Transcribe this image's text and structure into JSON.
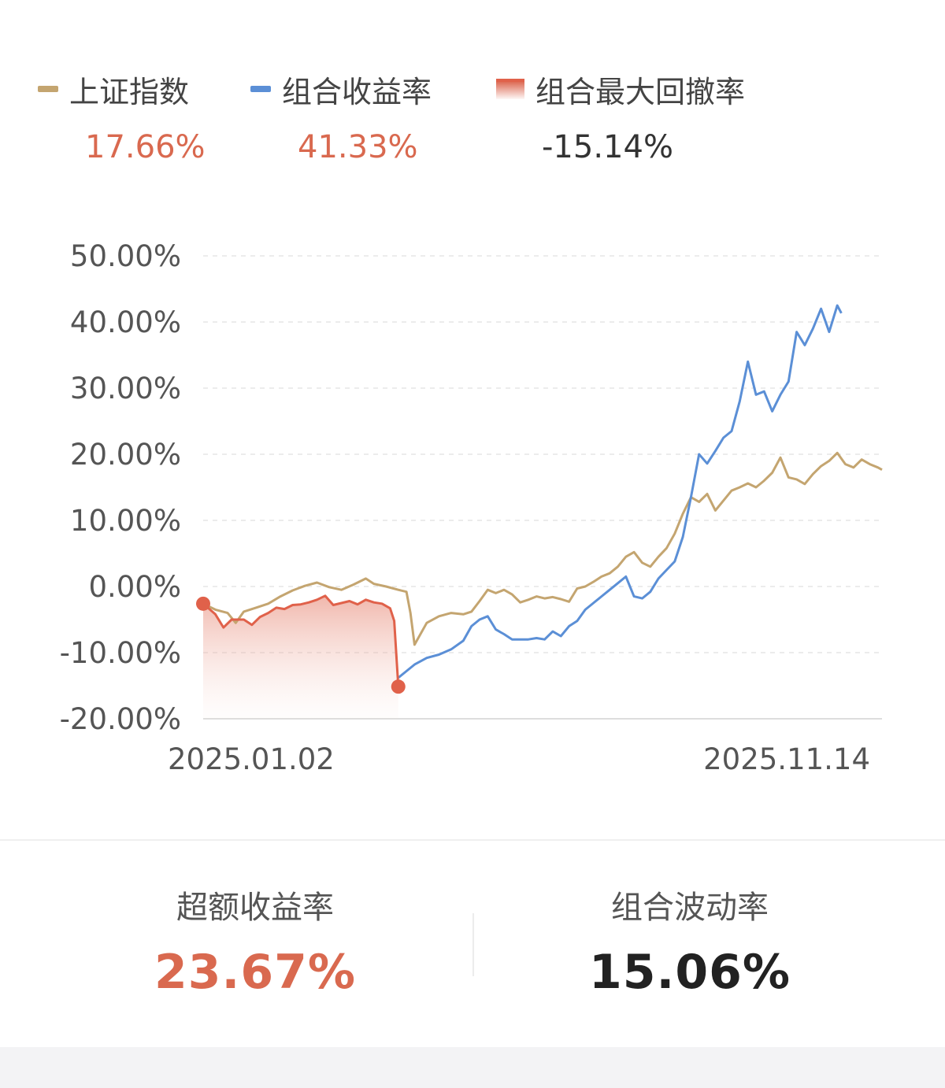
{
  "legend": [
    {
      "label": "上证指数",
      "value": "17.66%",
      "color": "#c4a570",
      "value_color": "#d9694f"
    },
    {
      "label": "组合收益率",
      "value": "41.33%",
      "color": "#5b8fd6",
      "value_color": "#d9694f"
    },
    {
      "label": "组合最大回撤率",
      "value": "-15.14%",
      "color": "#e0614a",
      "value_color": "#333333"
    }
  ],
  "chart_data": {
    "type": "line",
    "x_start_label": "2025.01.02",
    "x_end_label": "2025.11.14",
    "ylim": [
      -20,
      50
    ],
    "yticks": [
      "50.00%",
      "40.00%",
      "30.00%",
      "20.00%",
      "10.00%",
      "0.00%",
      "-10.00%",
      "-20.00%"
    ],
    "grid": true,
    "series": [
      {
        "name": "上证指数",
        "color": "#c4a570",
        "points": [
          [
            0,
            -2.6
          ],
          [
            3,
            -3.5
          ],
          [
            6,
            -4
          ],
          [
            8,
            -5.5
          ],
          [
            10,
            -3.8
          ],
          [
            13,
            -3.2
          ],
          [
            16,
            -2.6
          ],
          [
            19,
            -1.5
          ],
          [
            22,
            -0.6
          ],
          [
            25,
            0.1
          ],
          [
            28,
            0.6
          ],
          [
            31,
            -0.1
          ],
          [
            34,
            -0.5
          ],
          [
            37,
            0.3
          ],
          [
            40,
            1.2
          ],
          [
            42,
            0.4
          ],
          [
            45,
            0
          ],
          [
            48,
            -0.5
          ],
          [
            50,
            -0.8
          ],
          [
            51,
            -4
          ],
          [
            52,
            -8.8
          ],
          [
            55,
            -5.5
          ],
          [
            58,
            -4.5
          ],
          [
            61,
            -4
          ],
          [
            64,
            -4.2
          ],
          [
            66,
            -3.8
          ],
          [
            68,
            -2.2
          ],
          [
            70,
            -0.5
          ],
          [
            72,
            -1
          ],
          [
            74,
            -0.5
          ],
          [
            76,
            -1.2
          ],
          [
            78,
            -2.4
          ],
          [
            80,
            -2
          ],
          [
            82,
            -1.5
          ],
          [
            84,
            -1.8
          ],
          [
            86,
            -1.6
          ],
          [
            88,
            -1.9
          ],
          [
            90,
            -2.3
          ],
          [
            92,
            -0.3
          ],
          [
            94,
            0
          ],
          [
            96,
            0.7
          ],
          [
            98,
            1.5
          ],
          [
            100,
            2
          ],
          [
            102,
            3
          ],
          [
            104,
            4.5
          ],
          [
            106,
            5.2
          ],
          [
            108,
            3.6
          ],
          [
            110,
            3
          ],
          [
            112,
            4.5
          ],
          [
            114,
            5.8
          ],
          [
            116,
            8
          ],
          [
            118,
            11
          ],
          [
            120,
            13.5
          ],
          [
            122,
            12.8
          ],
          [
            124,
            14
          ],
          [
            126,
            11.5
          ],
          [
            128,
            13
          ],
          [
            130,
            14.5
          ],
          [
            132,
            15
          ],
          [
            134,
            15.6
          ],
          [
            136,
            15
          ],
          [
            138,
            16
          ],
          [
            140,
            17.2
          ],
          [
            142,
            19.5
          ],
          [
            144,
            16.5
          ],
          [
            146,
            16.2
          ],
          [
            148,
            15.5
          ],
          [
            150,
            17
          ],
          [
            152,
            18.2
          ],
          [
            154,
            19
          ],
          [
            156,
            20.2
          ],
          [
            158,
            18.5
          ],
          [
            160,
            18
          ],
          [
            162,
            19.2
          ],
          [
            164,
            18.5
          ],
          [
            166,
            18
          ],
          [
            167,
            17.66
          ]
        ]
      },
      {
        "name": "组合收益率",
        "color": "#5b8fd6",
        "points": [
          [
            48,
            -13.8
          ],
          [
            50,
            -12.8
          ],
          [
            52,
            -11.8
          ],
          [
            55,
            -10.8
          ],
          [
            58,
            -10.3
          ],
          [
            61,
            -9.5
          ],
          [
            64,
            -8.2
          ],
          [
            66,
            -6
          ],
          [
            68,
            -5
          ],
          [
            70,
            -4.5
          ],
          [
            72,
            -6.5
          ],
          [
            74,
            -7.2
          ],
          [
            76,
            -8
          ],
          [
            78,
            -8
          ],
          [
            80,
            -8
          ],
          [
            82,
            -7.8
          ],
          [
            84,
            -8
          ],
          [
            86,
            -6.8
          ],
          [
            88,
            -7.5
          ],
          [
            90,
            -6
          ],
          [
            92,
            -5.2
          ],
          [
            94,
            -3.5
          ],
          [
            96,
            -2.5
          ],
          [
            98,
            -1.5
          ],
          [
            100,
            -0.5
          ],
          [
            102,
            0.5
          ],
          [
            104,
            1.5
          ],
          [
            106,
            -1.5
          ],
          [
            108,
            -1.8
          ],
          [
            110,
            -0.8
          ],
          [
            112,
            1.2
          ],
          [
            114,
            2.5
          ],
          [
            116,
            3.8
          ],
          [
            118,
            7.5
          ],
          [
            120,
            13.5
          ],
          [
            122,
            20
          ],
          [
            124,
            18.6
          ],
          [
            126,
            20.5
          ],
          [
            128,
            22.5
          ],
          [
            130,
            23.5
          ],
          [
            132,
            28
          ],
          [
            134,
            34
          ],
          [
            136,
            29
          ],
          [
            138,
            29.5
          ],
          [
            140,
            26.5
          ],
          [
            142,
            29
          ],
          [
            144,
            31
          ],
          [
            146,
            38.5
          ],
          [
            148,
            36.5
          ],
          [
            150,
            39
          ],
          [
            152,
            42
          ],
          [
            154,
            38.5
          ],
          [
            156,
            42.5
          ],
          [
            157,
            41.33
          ]
        ]
      }
    ],
    "drawdown": {
      "name": "组合最大回撤率",
      "value": "-15.14%",
      "color": "#e0614a",
      "start": [
        0,
        -2.6
      ],
      "end": [
        48,
        -15.14
      ],
      "points": [
        [
          0,
          -2.6
        ],
        [
          3,
          -4.2
        ],
        [
          5,
          -6.2
        ],
        [
          7,
          -5
        ],
        [
          10,
          -5
        ],
        [
          12,
          -5.8
        ],
        [
          14,
          -4.6
        ],
        [
          16,
          -4
        ],
        [
          18,
          -3.2
        ],
        [
          20,
          -3.4
        ],
        [
          22,
          -2.8
        ],
        [
          24,
          -2.7
        ],
        [
          26,
          -2.4
        ],
        [
          28,
          -2
        ],
        [
          30,
          -1.4
        ],
        [
          32,
          -2.8
        ],
        [
          34,
          -2.5
        ],
        [
          36,
          -2.2
        ],
        [
          38,
          -2.7
        ],
        [
          40,
          -2
        ],
        [
          42,
          -2.4
        ],
        [
          44,
          -2.6
        ],
        [
          46,
          -3.3
        ],
        [
          47,
          -5.2
        ],
        [
          48,
          -15.14
        ]
      ]
    }
  },
  "stats": [
    {
      "label": "超额收益率",
      "value": "23.67%",
      "color": "#d9694f"
    },
    {
      "label": "组合波动率",
      "value": "15.06%",
      "color": "#222222"
    }
  ]
}
